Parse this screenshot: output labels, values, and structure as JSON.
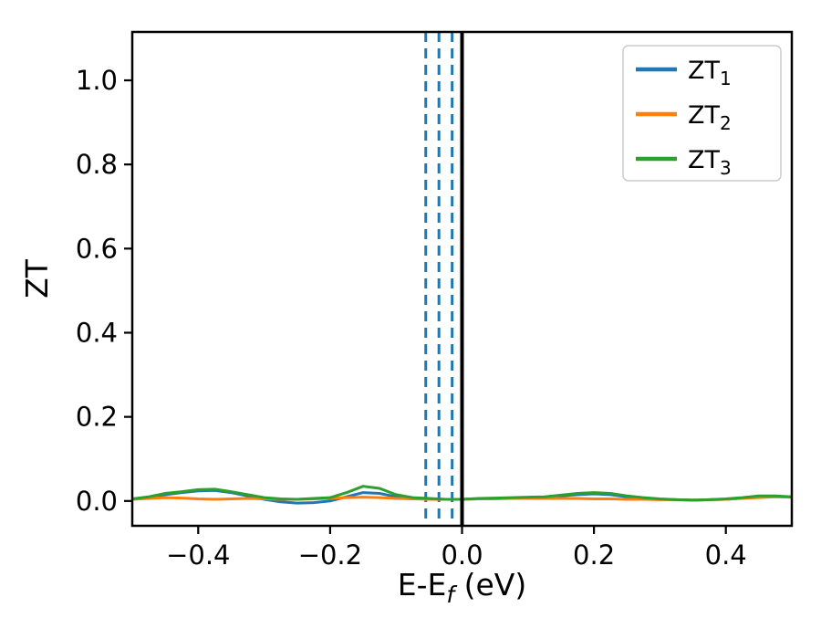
{
  "figure": {
    "background": "#ffffff"
  },
  "chart_data": {
    "type": "line",
    "title": "",
    "xlabel": "E-E_f (eV)",
    "xlabel_parts": {
      "main": "E-E",
      "sub": "f",
      "rest": " (eV)"
    },
    "ylabel": "ZT",
    "xlim": [
      -0.5,
      0.5
    ],
    "ylim": [
      -0.059,
      1.115
    ],
    "xticks": [
      -0.4,
      -0.2,
      0.0,
      0.2,
      0.4
    ],
    "yticks": [
      0.0,
      0.2,
      0.4,
      0.6,
      0.8,
      1.0
    ],
    "grid": false,
    "legend_position": "upper right",
    "x": [
      -0.5,
      -0.475,
      -0.45,
      -0.425,
      -0.4,
      -0.375,
      -0.35,
      -0.325,
      -0.3,
      -0.275,
      -0.25,
      -0.225,
      -0.2,
      -0.175,
      -0.15,
      -0.125,
      -0.1,
      -0.075,
      -0.05,
      -0.025,
      0.0,
      0.025,
      0.05,
      0.075,
      0.1,
      0.125,
      0.15,
      0.175,
      0.2,
      0.225,
      0.25,
      0.275,
      0.3,
      0.325,
      0.35,
      0.375,
      0.4,
      0.425,
      0.45,
      0.475,
      0.5
    ],
    "series": [
      {
        "name": "ZT_1",
        "label_main": "ZT",
        "label_sub": "1",
        "color": "#1f77b4",
        "values": [
          0.005,
          0.009,
          0.015,
          0.02,
          0.024,
          0.025,
          0.02,
          0.012,
          0.004,
          -0.002,
          -0.005,
          -0.004,
          0.0,
          0.01,
          0.02,
          0.018,
          0.01,
          0.006,
          0.005,
          0.004,
          0.004,
          0.005,
          0.006,
          0.007,
          0.008,
          0.009,
          0.012,
          0.015,
          0.017,
          0.015,
          0.01,
          0.007,
          0.004,
          0.003,
          0.002,
          0.003,
          0.004,
          0.007,
          0.01,
          0.011,
          0.009
        ]
      },
      {
        "name": "ZT_2",
        "label_main": "ZT",
        "label_sub": "2",
        "color": "#ff7f0e",
        "values": [
          0.004,
          0.006,
          0.008,
          0.007,
          0.005,
          0.004,
          0.005,
          0.006,
          0.005,
          0.004,
          0.004,
          0.005,
          0.006,
          0.008,
          0.009,
          0.008,
          0.006,
          0.005,
          0.004,
          0.004,
          0.004,
          0.005,
          0.005,
          0.006,
          0.006,
          0.006,
          0.006,
          0.006,
          0.005,
          0.005,
          0.004,
          0.004,
          0.003,
          0.003,
          0.002,
          0.003,
          0.004,
          0.006,
          0.008,
          0.01,
          0.009
        ]
      },
      {
        "name": "ZT_3",
        "label_main": "ZT",
        "label_sub": "3",
        "color": "#2ca02c",
        "values": [
          0.005,
          0.01,
          0.018,
          0.022,
          0.027,
          0.028,
          0.022,
          0.015,
          0.008,
          0.005,
          0.004,
          0.006,
          0.008,
          0.02,
          0.035,
          0.03,
          0.015,
          0.008,
          0.006,
          0.004,
          0.004,
          0.006,
          0.007,
          0.008,
          0.009,
          0.01,
          0.014,
          0.018,
          0.02,
          0.018,
          0.012,
          0.008,
          0.005,
          0.003,
          0.002,
          0.003,
          0.005,
          0.008,
          0.012,
          0.012,
          0.01
        ]
      }
    ],
    "vlines": {
      "dashed": {
        "x": [
          -0.055,
          -0.035,
          -0.015
        ],
        "color": "#1f77b4"
      },
      "solid": {
        "x": 0.0,
        "color": "#000000"
      }
    }
  }
}
